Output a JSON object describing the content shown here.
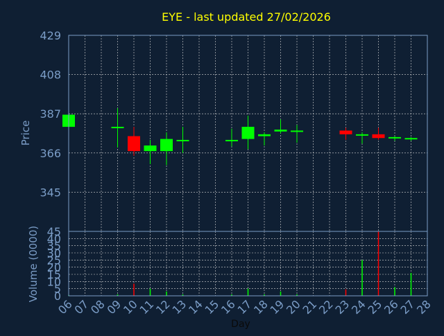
{
  "colors": {
    "background": "#0f1f33",
    "title": "#ffff00",
    "axis_text": "#7b9dc7",
    "grid": "#d9d9d9",
    "up": "#00ff00",
    "down": "#ff0000"
  },
  "chart_data": [
    {
      "type": "candlestick",
      "title": "EYE - last updated 27/02/2026",
      "ylabel": "Price",
      "ylim": [
        324,
        429
      ],
      "yticks": [
        "429",
        "408",
        "387",
        "366",
        "345"
      ],
      "grid": true,
      "x_index": [
        0,
        1,
        2,
        3,
        4,
        5,
        6,
        7,
        8,
        9,
        10,
        11,
        12,
        13,
        14,
        15,
        16,
        17,
        18,
        19,
        20,
        21,
        22
      ],
      "candles": [
        {
          "x": 0,
          "open": 380,
          "high": 387,
          "low": 380,
          "close": 386.5
        },
        {
          "x": 3,
          "open": 380,
          "high": 390,
          "low": 369,
          "close": 380
        },
        {
          "x": 4,
          "open": 375,
          "high": 380,
          "low": 364.5,
          "close": 367
        },
        {
          "x": 5,
          "open": 367,
          "high": 373,
          "low": 360,
          "close": 370
        },
        {
          "x": 6,
          "open": 367,
          "high": 377,
          "low": 359.5,
          "close": 373.5
        },
        {
          "x": 7,
          "open": 373,
          "high": 380,
          "low": 366,
          "close": 373
        },
        {
          "x": 10,
          "open": 373,
          "high": 379,
          "low": 369.5,
          "close": 373
        },
        {
          "x": 11,
          "open": 373.5,
          "high": 386,
          "low": 368,
          "close": 380
        },
        {
          "x": 12,
          "open": 375,
          "high": 377,
          "low": 370,
          "close": 376
        },
        {
          "x": 13,
          "open": 377.5,
          "high": 384,
          "low": 376.5,
          "close": 378.5
        },
        {
          "x": 14,
          "open": 378,
          "high": 381,
          "low": 371.5,
          "close": 378
        },
        {
          "x": 17,
          "open": 378,
          "high": 379.5,
          "low": 373,
          "close": 376
        },
        {
          "x": 18,
          "open": 376,
          "high": 377,
          "low": 371,
          "close": 376
        },
        {
          "x": 19,
          "open": 376,
          "high": 379.5,
          "low": 373,
          "close": 374
        },
        {
          "x": 20,
          "open": 374,
          "high": 375,
          "low": 372.5,
          "close": 374.5
        },
        {
          "x": 21,
          "open": 374,
          "high": 374.5,
          "low": 372.5,
          "close": 374
        }
      ]
    },
    {
      "type": "bar",
      "ylabel": "Volume (0000)",
      "xlabel": "Day",
      "ylim": [
        0,
        45
      ],
      "yticks": [
        "45",
        "40",
        "35",
        "30",
        "25",
        "20",
        "15",
        "10",
        "5",
        "0"
      ],
      "xticks": [
        "06",
        "07",
        "08",
        "09",
        "10",
        "11",
        "12",
        "13",
        "14",
        "15",
        "16",
        "17",
        "18",
        "19",
        "20",
        "21",
        "22",
        "23",
        "24",
        "25",
        "26",
        "27",
        "28"
      ],
      "grid": true,
      "bars": [
        {
          "x": 0,
          "value": 0.5,
          "color": "#00ff00"
        },
        {
          "x": 3,
          "value": 1,
          "color": "#00ff00"
        },
        {
          "x": 4,
          "value": 8.5,
          "color": "#ff0000"
        },
        {
          "x": 5,
          "value": 5,
          "color": "#00ff00"
        },
        {
          "x": 6,
          "value": 3,
          "color": "#00ff00"
        },
        {
          "x": 7,
          "value": 1,
          "color": "#00ff00"
        },
        {
          "x": 10,
          "value": 1,
          "color": "#00ff00"
        },
        {
          "x": 11,
          "value": 5,
          "color": "#00ff00"
        },
        {
          "x": 12,
          "value": 1,
          "color": "#00ff00"
        },
        {
          "x": 13,
          "value": 3,
          "color": "#00ff00"
        },
        {
          "x": 14,
          "value": 1,
          "color": "#00ff00"
        },
        {
          "x": 17,
          "value": 4.5,
          "color": "#ff0000"
        },
        {
          "x": 18,
          "value": 25,
          "color": "#00ff00"
        },
        {
          "x": 19,
          "value": 45,
          "color": "#ff0000"
        },
        {
          "x": 20,
          "value": 6,
          "color": "#00ff00"
        },
        {
          "x": 21,
          "value": 16,
          "color": "#00ff00"
        }
      ]
    }
  ]
}
